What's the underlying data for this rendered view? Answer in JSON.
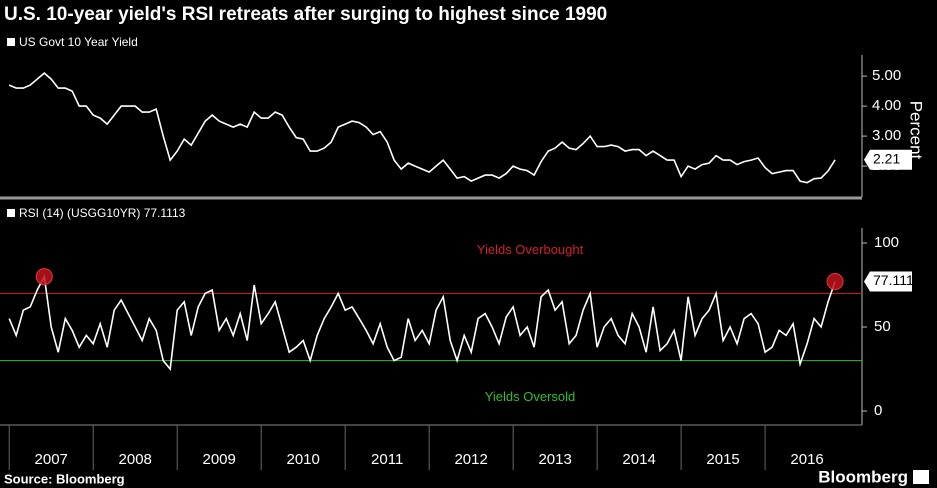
{
  "chart_data": {
    "type": "line",
    "title": "U.S. 10-year yield's RSI retreats after surging to highest since 1990",
    "y_label": "Percent",
    "source": "Source: Bloomberg",
    "brand": "Bloomberg",
    "x": [
      2007.0,
      2007.083,
      2007.167,
      2007.25,
      2007.333,
      2007.417,
      2007.5,
      2007.583,
      2007.667,
      2007.75,
      2007.833,
      2007.917,
      2008.0,
      2008.083,
      2008.167,
      2008.25,
      2008.333,
      2008.417,
      2008.5,
      2008.583,
      2008.667,
      2008.75,
      2008.833,
      2008.917,
      2009.0,
      2009.083,
      2009.167,
      2009.25,
      2009.333,
      2009.417,
      2009.5,
      2009.583,
      2009.667,
      2009.75,
      2009.833,
      2009.917,
      2010.0,
      2010.083,
      2010.167,
      2010.25,
      2010.333,
      2010.417,
      2010.5,
      2010.583,
      2010.667,
      2010.75,
      2010.833,
      2010.917,
      2011.0,
      2011.083,
      2011.167,
      2011.25,
      2011.333,
      2011.417,
      2011.5,
      2011.583,
      2011.667,
      2011.75,
      2011.833,
      2011.917,
      2012.0,
      2012.083,
      2012.167,
      2012.25,
      2012.333,
      2012.417,
      2012.5,
      2012.583,
      2012.667,
      2012.75,
      2012.833,
      2012.917,
      2013.0,
      2013.083,
      2013.167,
      2013.25,
      2013.333,
      2013.417,
      2013.5,
      2013.583,
      2013.667,
      2013.75,
      2013.833,
      2013.917,
      2014.0,
      2014.083,
      2014.167,
      2014.25,
      2014.333,
      2014.417,
      2014.5,
      2014.583,
      2014.667,
      2014.75,
      2014.833,
      2014.917,
      2015.0,
      2015.083,
      2015.167,
      2015.25,
      2015.333,
      2015.417,
      2015.5,
      2015.583,
      2015.667,
      2015.75,
      2015.833,
      2015.917,
      2016.0,
      2016.083,
      2016.167,
      2016.25,
      2016.333,
      2016.417,
      2016.5,
      2016.583,
      2016.667,
      2016.75,
      2016.833
    ],
    "series": [
      {
        "name": "US Govt 10 Year Yield",
        "color": "#ffffff",
        "values": [
          4.7,
          4.6,
          4.6,
          4.7,
          4.9,
          5.1,
          4.9,
          4.6,
          4.6,
          4.5,
          4.0,
          4.0,
          3.7,
          3.6,
          3.4,
          3.7,
          4.0,
          4.0,
          4.0,
          3.8,
          3.8,
          3.9,
          3.0,
          2.2,
          2.5,
          2.9,
          2.7,
          3.1,
          3.5,
          3.7,
          3.5,
          3.4,
          3.3,
          3.4,
          3.3,
          3.8,
          3.6,
          3.6,
          3.8,
          3.7,
          3.3,
          2.95,
          2.9,
          2.5,
          2.5,
          2.6,
          2.8,
          3.3,
          3.4,
          3.5,
          3.45,
          3.3,
          3.05,
          3.15,
          2.8,
          2.2,
          1.9,
          2.1,
          2.0,
          1.9,
          1.8,
          2.0,
          2.2,
          1.9,
          1.6,
          1.65,
          1.5,
          1.6,
          1.7,
          1.7,
          1.6,
          1.75,
          2.0,
          1.9,
          1.85,
          1.7,
          2.15,
          2.5,
          2.6,
          2.8,
          2.6,
          2.55,
          2.75,
          3.0,
          2.65,
          2.65,
          2.7,
          2.65,
          2.5,
          2.55,
          2.55,
          2.35,
          2.5,
          2.35,
          2.2,
          2.2,
          1.65,
          2.0,
          1.9,
          2.05,
          2.1,
          2.35,
          2.2,
          2.2,
          2.05,
          2.15,
          2.2,
          2.27,
          1.95,
          1.75,
          1.8,
          1.85,
          1.85,
          1.5,
          1.45,
          1.58,
          1.6,
          1.84,
          2.21
        ]
      },
      {
        "name": "RSI (14) (USGG10YR) 77.1113",
        "color": "#ffffff",
        "axis": "y2",
        "values": [
          55,
          45,
          60,
          62,
          72,
          80,
          50,
          35,
          55,
          48,
          38,
          45,
          40,
          52,
          38,
          60,
          66,
          58,
          50,
          42,
          55,
          48,
          30,
          25,
          60,
          65,
          45,
          62,
          70,
          72,
          48,
          55,
          45,
          58,
          42,
          75,
          52,
          58,
          65,
          50,
          35,
          38,
          42,
          30,
          45,
          55,
          62,
          70,
          60,
          62,
          55,
          48,
          40,
          52,
          38,
          30,
          32,
          55,
          42,
          48,
          40,
          60,
          68,
          42,
          30,
          45,
          35,
          55,
          58,
          50,
          40,
          56,
          62,
          45,
          50,
          38,
          68,
          72,
          60,
          65,
          40,
          45,
          60,
          70,
          38,
          50,
          55,
          45,
          40,
          58,
          50,
          35,
          62,
          36,
          40,
          48,
          30,
          68,
          45,
          55,
          60,
          70,
          42,
          50,
          40,
          55,
          58,
          52,
          35,
          38,
          48,
          45,
          52,
          28,
          40,
          55,
          50,
          65,
          77.1113
        ]
      }
    ],
    "highlight_points": [
      5,
      118
    ],
    "annotations": [
      {
        "text": "Yields Overbought",
        "value": 70,
        "color": "#d0202a"
      },
      {
        "text": "Yields Oversold",
        "value": 30,
        "color": "#2fbf2f"
      }
    ],
    "xlim": [
      2006.89,
      2017.13
    ],
    "xticks": [
      2007,
      2008,
      2009,
      2010,
      2011,
      2012,
      2013,
      2014,
      2015,
      2016
    ],
    "ylim": [
      0.97,
      6.37
    ],
    "yticks": [
      {
        "value": 2,
        "label": "2.00"
      },
      {
        "value": 3,
        "label": "3.00"
      },
      {
        "value": 4,
        "label": "4.00"
      },
      {
        "value": 5,
        "label": "5.00"
      }
    ],
    "y2lim": [
      -8.3,
      125.6
    ],
    "y2ticks": [
      0,
      50,
      100
    ]
  }
}
